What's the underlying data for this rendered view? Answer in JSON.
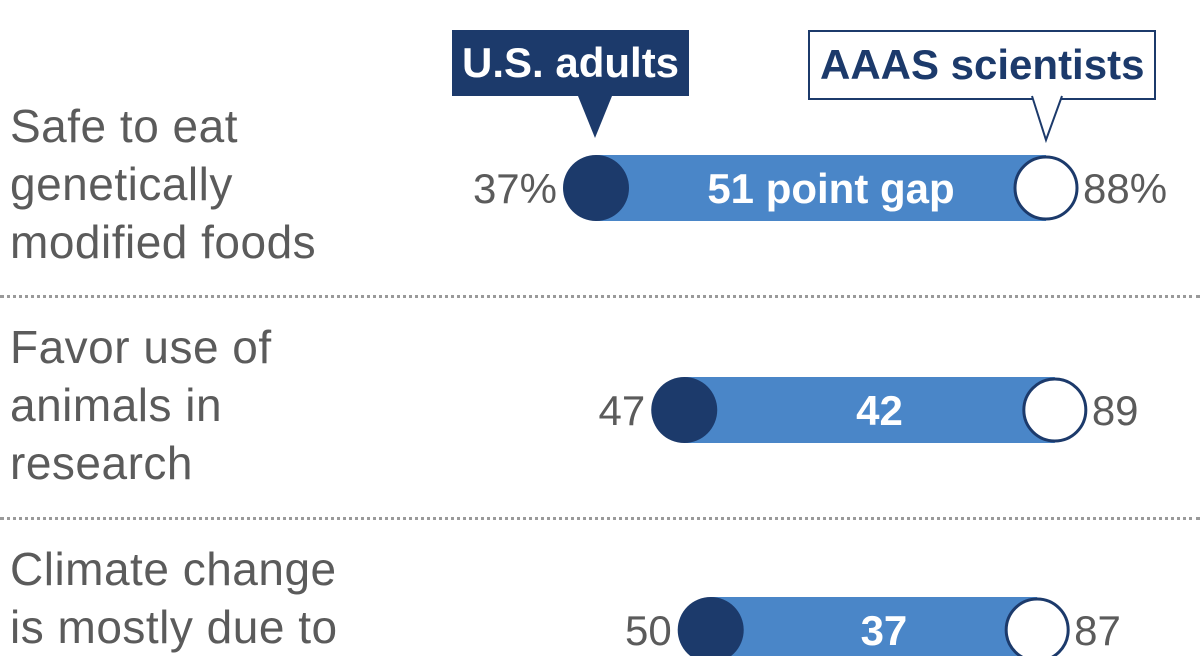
{
  "legend": {
    "us_adults": "U.S. adults",
    "aaas_scientists": "AAAS scientists"
  },
  "colors": {
    "bar": "#4a86c8",
    "us_dot": "#1c3a6b",
    "aaas_dot": "#ffffff",
    "label_text": "#5b5b5b",
    "gap_text": "#ffffff"
  },
  "chart_data": {
    "type": "dot-range",
    "series": [
      {
        "name": "U.S. adults"
      },
      {
        "name": "AAAS scientists"
      }
    ],
    "rows": [
      {
        "label": "Safe to eat\ngenetically\nmodified foods",
        "us_adults": 37,
        "aaas_scientists": 88,
        "gap": 51,
        "us_label": "37%",
        "aaas_label": "88%",
        "gap_label": "51 point gap"
      },
      {
        "label": "Favor use of\nanimals in\nresearch",
        "us_adults": 47,
        "aaas_scientists": 89,
        "gap": 42,
        "us_label": "47",
        "aaas_label": "89",
        "gap_label": "42"
      },
      {
        "label": "Climate change\nis mostly due to",
        "us_adults": 50,
        "aaas_scientists": 87,
        "gap": 37,
        "us_label": "50",
        "aaas_label": "87",
        "gap_label": "37"
      }
    ]
  }
}
